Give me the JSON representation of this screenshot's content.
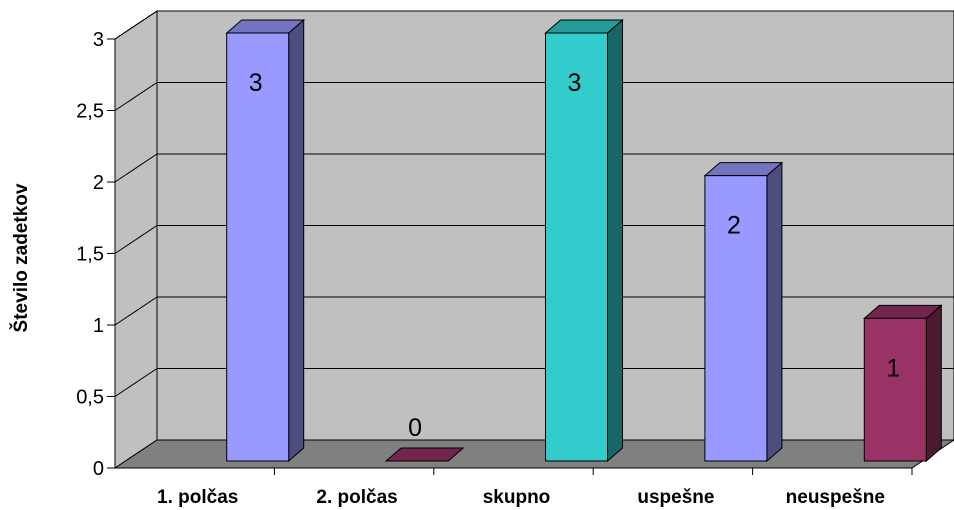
{
  "chart_data": {
    "type": "bar",
    "style": "3d-column",
    "title": "",
    "xlabel": "",
    "ylabel": "Število zadetkov",
    "ylim": [
      0,
      3
    ],
    "y_ticks": [
      "0",
      "0,5",
      "1",
      "1,5",
      "2",
      "2,5",
      "3"
    ],
    "grid": true,
    "legend": "none",
    "categories": [
      "1. polčas",
      "2. polčas",
      "skupno",
      "uspešne",
      "neuspešne"
    ],
    "values": [
      3,
      0,
      3,
      2,
      1
    ],
    "data_labels": [
      "3",
      "0",
      "3",
      "2",
      "1"
    ],
    "bar_colors": [
      "#9999ff",
      "#993366",
      "#33cccc",
      "#9999ff",
      "#993366"
    ],
    "wall_color": "#c0c0c0",
    "floor_color": "#808080"
  }
}
